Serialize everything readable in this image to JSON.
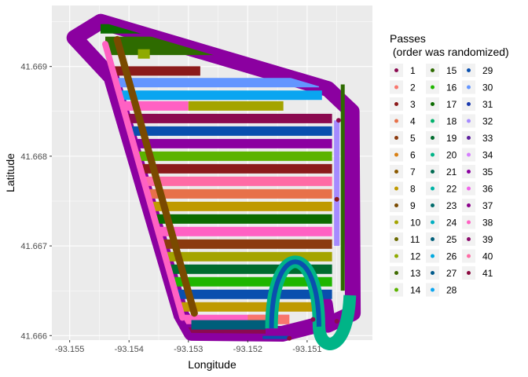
{
  "chart_data": {
    "type": "scatter",
    "xlabel": "Longitude",
    "ylabel": "Latitude",
    "xlim": [
      -93.1553,
      -93.1499
    ],
    "ylim": [
      41.66595,
      41.66968
    ],
    "x_ticks": [
      "-93.155",
      "-93.154",
      "-93.153",
      "-93.152",
      "-93.151"
    ],
    "x_tick_values": [
      -93.155,
      -93.154,
      -93.153,
      -93.152,
      -93.151
    ],
    "y_ticks": [
      "41.666",
      "41.667",
      "41.668",
      "41.669"
    ],
    "y_tick_values": [
      41.666,
      41.667,
      41.668,
      41.669
    ],
    "grid": true,
    "legend": {
      "title_line1": "Passes",
      "title_line2": " (order was randomized)",
      "position": "right",
      "columns": 3,
      "entries": [
        {
          "label": "1",
          "color": "#8B0A50"
        },
        {
          "label": "2",
          "color": "#F8766D"
        },
        {
          "label": "3",
          "color": "#8B1A1A"
        },
        {
          "label": "4",
          "color": "#E7714A"
        },
        {
          "label": "5",
          "color": "#8B3A0F"
        },
        {
          "label": "6",
          "color": "#D98014"
        },
        {
          "label": "7",
          "color": "#8B5A00"
        },
        {
          "label": "8",
          "color": "#BF9A00"
        },
        {
          "label": "9",
          "color": "#7A4A00"
        },
        {
          "label": "10",
          "color": "#A4A400"
        },
        {
          "label": "11",
          "color": "#6B6B00"
        },
        {
          "label": "12",
          "color": "#8FAA00"
        },
        {
          "label": "13",
          "color": "#3F6B00"
        },
        {
          "label": "14",
          "color": "#5BB300"
        },
        {
          "label": "15",
          "color": "#2E6B00"
        },
        {
          "label": "16",
          "color": "#1FB500"
        },
        {
          "label": "17",
          "color": "#0B6B00"
        },
        {
          "label": "18",
          "color": "#00B16B"
        },
        {
          "label": "19",
          "color": "#006B2E"
        },
        {
          "label": "20",
          "color": "#00B487"
        },
        {
          "label": "21",
          "color": "#006B52"
        },
        {
          "label": "22",
          "color": "#00B3A6"
        },
        {
          "label": "23",
          "color": "#006B6B"
        },
        {
          "label": "24",
          "color": "#00AFC2"
        },
        {
          "label": "25",
          "color": "#005E7A"
        },
        {
          "label": "26",
          "color": "#00A9DF"
        },
        {
          "label": "27",
          "color": "#005A8B"
        },
        {
          "label": "28",
          "color": "#0AA5F0"
        },
        {
          "label": "29",
          "color": "#0A4FAE"
        },
        {
          "label": "30",
          "color": "#6395FF"
        },
        {
          "label": "31",
          "color": "#1A3AAE"
        },
        {
          "label": "32",
          "color": "#A58AFF"
        },
        {
          "label": "33",
          "color": "#5C1F9E"
        },
        {
          "label": "34",
          "color": "#D67FFF"
        },
        {
          "label": "35",
          "color": "#8B00A0"
        },
        {
          "label": "36",
          "color": "#F066EA"
        },
        {
          "label": "37",
          "color": "#8B008B"
        },
        {
          "label": "38",
          "color": "#FF61C3"
        },
        {
          "label": "39",
          "color": "#8B0A6B"
        },
        {
          "label": "40",
          "color": "#FF6BA5"
        },
        {
          "label": "41",
          "color": "#8B0A3F"
        }
      ]
    },
    "boundary_pass": {
      "label": "35",
      "polygon": [
        [
          -93.15492,
          41.66932
        ],
        [
          -93.15448,
          41.6695
        ],
        [
          -93.15065,
          41.66875
        ],
        [
          -93.15025,
          41.6685
        ],
        [
          -93.15023,
          41.66625
        ],
        [
          -93.15065,
          41.66612
        ],
        [
          -93.1507,
          41.66635
        ],
        [
          -93.15082,
          41.66612
        ],
        [
          -93.15142,
          41.66602
        ],
        [
          -93.15295,
          41.66603
        ],
        [
          -93.15312,
          41.66623
        ],
        [
          -93.1543,
          41.66888
        ]
      ]
    },
    "stripes": [
      {
        "label": "17",
        "y": 41.66942,
        "x_start": -93.15448,
        "x_end": -93.15065
      },
      {
        "label": "15",
        "y": 41.66928,
        "x_start": -93.1544,
        "x_end": -93.15055
      },
      {
        "label": "15",
        "y": 41.66918,
        "x_start": -93.15435,
        "x_end": -93.1505
      },
      {
        "label": "12",
        "y": 41.66914,
        "x_start": -93.15385,
        "x_end": -93.15365
      },
      {
        "label": "3",
        "y": 41.66895,
        "x_start": -93.1543,
        "x_end": -93.1528
      },
      {
        "label": "30",
        "y": 41.66882,
        "x_start": -93.1542,
        "x_end": -93.1508
      },
      {
        "label": "28",
        "y": 41.66868,
        "x_start": -93.15415,
        "x_end": -93.15075
      },
      {
        "label": "38",
        "y": 41.66856,
        "x_start": -93.1541,
        "x_end": -93.153
      },
      {
        "label": "10",
        "y": 41.66856,
        "x_start": -93.153,
        "x_end": -93.1514
      },
      {
        "label": "1",
        "y": 41.66842,
        "x_start": -93.15405,
        "x_end": -93.15058
      },
      {
        "label": "29",
        "y": 41.66828,
        "x_start": -93.154,
        "x_end": -93.15058
      },
      {
        "label": "35",
        "y": 41.66814,
        "x_start": -93.15395,
        "x_end": -93.15058
      },
      {
        "label": "14",
        "y": 41.668,
        "x_start": -93.1539,
        "x_end": -93.15058
      },
      {
        "label": "3",
        "y": 41.66786,
        "x_start": -93.15385,
        "x_end": -93.15058
      },
      {
        "label": "40",
        "y": 41.66772,
        "x_start": -93.1538,
        "x_end": -93.15058
      },
      {
        "label": "4",
        "y": 41.66758,
        "x_start": -93.1537,
        "x_end": -93.15058
      },
      {
        "label": "8",
        "y": 41.66744,
        "x_start": -93.15365,
        "x_end": -93.15058
      },
      {
        "label": "17",
        "y": 41.6673,
        "x_start": -93.1536,
        "x_end": -93.15058
      },
      {
        "label": "38",
        "y": 41.66716,
        "x_start": -93.15355,
        "x_end": -93.15058
      },
      {
        "label": "5",
        "y": 41.66702,
        "x_start": -93.1535,
        "x_end": -93.15058
      },
      {
        "label": "10",
        "y": 41.66688,
        "x_start": -93.15345,
        "x_end": -93.15058
      },
      {
        "label": "19",
        "y": 41.66674,
        "x_start": -93.1534,
        "x_end": -93.15058
      },
      {
        "label": "16",
        "y": 41.6666,
        "x_start": -93.15335,
        "x_end": -93.15058
      },
      {
        "label": "29",
        "y": 41.66646,
        "x_start": -93.1533,
        "x_end": -93.15058
      },
      {
        "label": "8",
        "y": 41.66632,
        "x_start": -93.15325,
        "x_end": -93.1509
      },
      {
        "label": "38",
        "y": 41.66618,
        "x_start": -93.1532,
        "x_end": -93.1513
      },
      {
        "label": "2",
        "y": 41.66618,
        "x_start": -93.152,
        "x_end": -93.1513
      },
      {
        "label": "1",
        "y": 41.66604,
        "x_start": -93.15315,
        "x_end": -93.1517
      },
      {
        "label": "16",
        "y": 41.6659,
        "x_start": -93.1531,
        "x_end": -93.1517
      },
      {
        "label": "40",
        "y": 41.66576,
        "x_start": -93.15305,
        "x_end": -93.1517
      },
      {
        "label": "23",
        "y": 41.66562,
        "x_start": -93.153,
        "x_end": -93.1517
      },
      {
        "label": "27",
        "y": 41.66548,
        "x_start": -93.15295,
        "x_end": -93.1517
      },
      {
        "label": "25",
        "y": 41.66612,
        "x_start": -93.15295,
        "x_end": -93.1517
      }
    ]
  }
}
